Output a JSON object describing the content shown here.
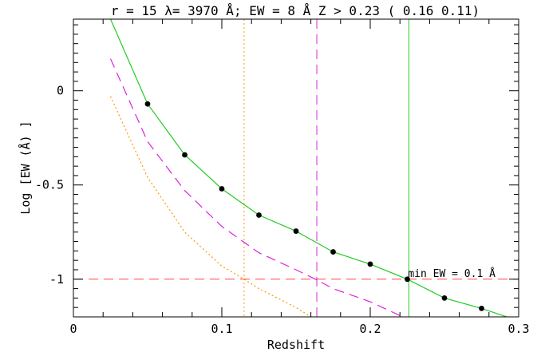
{
  "chart_data": {
    "type": "line",
    "title": "r = 15 λ= 3970 Å; EW = 8 Å   Z >  0.23 ( 0.16  0.11)",
    "xlabel": "Redshift",
    "ylabel": "Log [EW (Å) ]",
    "xlim": [
      0,
      0.3
    ],
    "ylim": [
      -1.2,
      0.38
    ],
    "xticks": [
      {
        "value": 0,
        "label": "0"
      },
      {
        "value": 0.1,
        "label": "0.1"
      },
      {
        "value": 0.2,
        "label": "0.2"
      },
      {
        "value": 0.3,
        "label": "0.3"
      }
    ],
    "yticks": [
      {
        "value": 0,
        "label": "0"
      },
      {
        "value": -0.5,
        "label": "-0.5"
      },
      {
        "value": -1,
        "label": "-1"
      }
    ],
    "series": [
      {
        "color": "#22cc22",
        "style": "solid",
        "markers": true,
        "x": [
          0.025,
          0.05,
          0.075,
          0.1,
          0.125,
          0.15,
          0.175,
          0.2,
          0.225,
          0.25,
          0.275,
          0.292
        ],
        "y": [
          0.38,
          -0.07,
          -0.34,
          -0.52,
          -0.66,
          -0.745,
          -0.855,
          -0.92,
          -1.0,
          -1.1,
          -1.155,
          -1.2
        ]
      },
      {
        "color": "#dd22dd",
        "style": "dashed",
        "markers": false,
        "x": [
          0.025,
          0.05,
          0.075,
          0.1,
          0.125,
          0.15,
          0.163,
          0.175,
          0.2,
          0.222
        ],
        "y": [
          0.17,
          -0.27,
          -0.53,
          -0.72,
          -0.86,
          -0.95,
          -1.0,
          -1.05,
          -1.12,
          -1.2
        ]
      },
      {
        "color": "#ff9900",
        "style": "dotted",
        "markers": false,
        "x": [
          0.025,
          0.05,
          0.075,
          0.1,
          0.115,
          0.125,
          0.15,
          0.16
        ],
        "y": [
          -0.03,
          -0.46,
          -0.75,
          -0.93,
          -1.0,
          -1.05,
          -1.15,
          -1.2
        ]
      }
    ],
    "reference_lines": [
      {
        "orientation": "horizontal",
        "value": -1,
        "color": "#ff4444",
        "style": "dashed"
      },
      {
        "orientation": "vertical",
        "value": 0.226,
        "color": "#22cc22",
        "style": "solid"
      },
      {
        "orientation": "vertical",
        "value": 0.164,
        "color": "#dd22dd",
        "style": "dashed"
      },
      {
        "orientation": "vertical",
        "value": 0.115,
        "color": "#ff9900",
        "style": "dotted"
      }
    ],
    "annotations": [
      {
        "text": "min EW = 0.1 Å",
        "x": 0.226,
        "y": -1
      }
    ],
    "grid": false
  }
}
